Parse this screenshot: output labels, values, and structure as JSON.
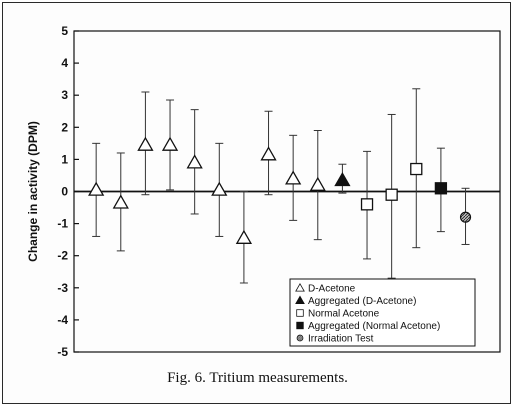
{
  "caption": "Fig. 6.  Tritium measurements.",
  "chart_data": {
    "type": "scatter",
    "ylabel": "Change in activity (DPM)",
    "xlabel": "",
    "title": "",
    "ylim": [
      -5,
      5
    ],
    "yticks": [
      5,
      4,
      3,
      2,
      1,
      0,
      -1,
      -2,
      -3,
      -4,
      -5
    ],
    "grid": false,
    "legend_position": "bottom-right",
    "series": [
      {
        "name": "D-Acetone",
        "marker": "open-triangle",
        "points": [
          {
            "x": 1,
            "y": 0.05,
            "err_low": -1.4,
            "err_high": 1.5
          },
          {
            "x": 2,
            "y": -0.35,
            "err_low": -1.85,
            "err_high": 1.2
          },
          {
            "x": 3,
            "y": 1.45,
            "err_low": -0.1,
            "err_high": 3.1
          },
          {
            "x": 4,
            "y": 1.45,
            "err_low": 0.05,
            "err_high": 2.85
          },
          {
            "x": 5,
            "y": 0.9,
            "err_low": -0.7,
            "err_high": 2.55
          },
          {
            "x": 6,
            "y": 0.05,
            "err_low": -1.4,
            "err_high": 1.5
          },
          {
            "x": 7,
            "y": -1.45,
            "err_low": -2.85,
            "err_high": 0.0
          },
          {
            "x": 8,
            "y": 1.15,
            "err_low": -0.1,
            "err_high": 2.5
          },
          {
            "x": 9,
            "y": 0.4,
            "err_low": -0.9,
            "err_high": 1.75
          },
          {
            "x": 10,
            "y": 0.2,
            "err_low": -1.5,
            "err_high": 1.9
          }
        ]
      },
      {
        "name": "Aggregated (D-Acetone)",
        "marker": "filled-triangle",
        "points": [
          {
            "x": 11,
            "y": 0.35,
            "err_low": -0.05,
            "err_high": 0.85
          }
        ]
      },
      {
        "name": "Normal Acetone",
        "marker": "open-square",
        "points": [
          {
            "x": 12,
            "y": -0.4,
            "err_low": -2.1,
            "err_high": 1.25
          },
          {
            "x": 13,
            "y": -0.1,
            "err_low": -2.7,
            "err_high": 2.4
          },
          {
            "x": 14,
            "y": 0.7,
            "err_low": -1.75,
            "err_high": 3.2
          }
        ]
      },
      {
        "name": "Aggregated (Normal Acetone)",
        "marker": "filled-square",
        "points": [
          {
            "x": 15,
            "y": 0.1,
            "err_low": -1.25,
            "err_high": 1.35
          }
        ]
      },
      {
        "name": "Irradiation Test",
        "marker": "hatched-circle",
        "points": [
          {
            "x": 16,
            "y": -0.8,
            "err_low": -1.65,
            "err_high": 0.1
          }
        ]
      }
    ]
  }
}
